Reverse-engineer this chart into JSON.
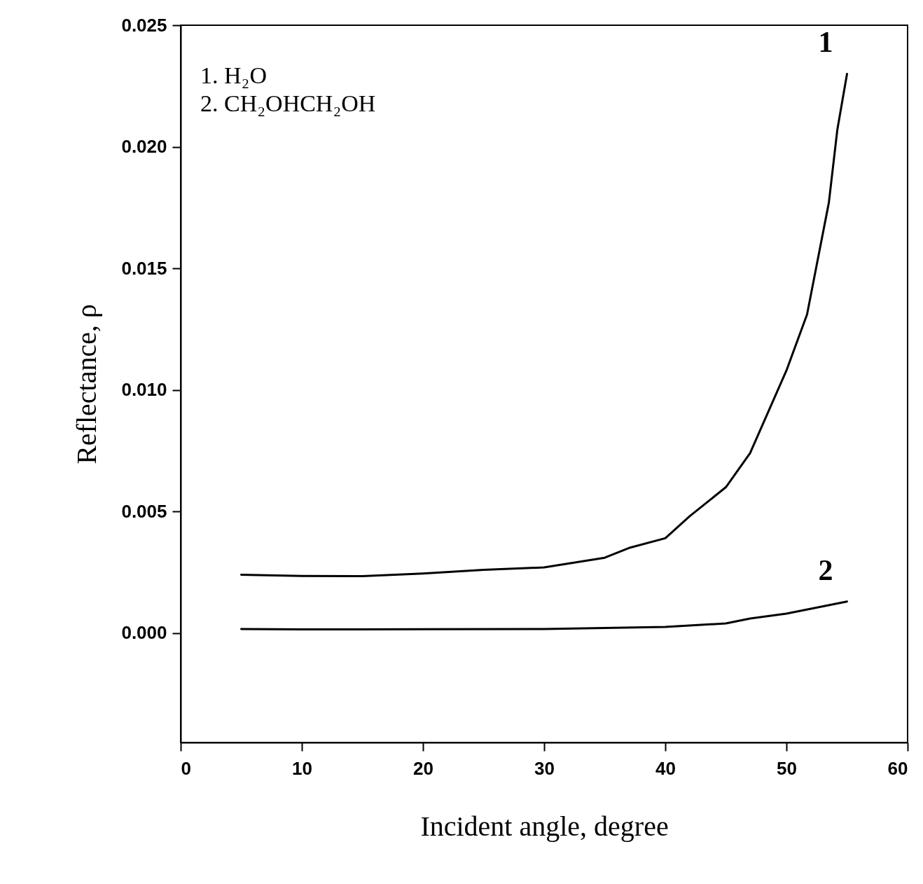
{
  "chart_data": {
    "type": "line",
    "xlabel": "Incident angle, degree",
    "ylabel": "Reflectance, ρ",
    "annotations": [
      "1. H₂O",
      "2. CH₂OHCH₂OH"
    ],
    "series": [
      {
        "name": "1",
        "color": "#000000",
        "x": [
          5,
          10,
          15,
          20,
          25,
          30,
          35,
          37,
          40,
          42,
          45,
          47,
          50,
          51.7,
          53.5,
          54.2,
          55
        ],
        "values": [
          0.0024,
          0.00235,
          0.00234,
          0.00245,
          0.0026,
          0.0027,
          0.0031,
          0.0035,
          0.0039,
          0.0048,
          0.006,
          0.0074,
          0.0108,
          0.0131,
          0.0177,
          0.0207,
          0.023
        ]
      },
      {
        "name": "2",
        "color": "#000000",
        "x": [
          5,
          10,
          20,
          30,
          40,
          45,
          47,
          50,
          55
        ],
        "values": [
          0.00017,
          0.00015,
          0.00016,
          0.00017,
          0.00025,
          0.0004,
          0.0006,
          0.0008,
          0.0013
        ]
      }
    ],
    "xlim": [
      0,
      60
    ],
    "xticks": [
      0,
      10,
      20,
      30,
      40,
      50,
      60
    ],
    "ylim": [
      -0.0045,
      0.025
    ],
    "yticks": [
      {
        "value": 0,
        "label": "0.000"
      },
      {
        "value": 0.005,
        "label": "0.005"
      },
      {
        "value": 0.01,
        "label": "0.010"
      },
      {
        "value": 0.015,
        "label": "0.015"
      },
      {
        "value": 0.02,
        "label": "0.020"
      },
      {
        "value": 0.025,
        "label": "0.025"
      }
    ],
    "grid": false,
    "legend": false,
    "line_style": "solid",
    "marker": "none"
  }
}
